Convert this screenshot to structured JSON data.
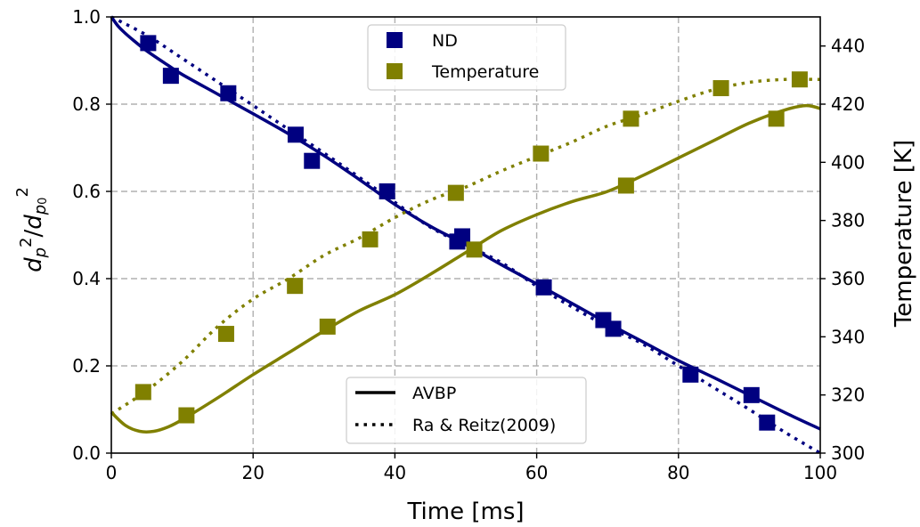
{
  "chart_data": {
    "type": "line",
    "xlabel": "Time [ms]",
    "ylabel_left": "d_p^2/d_{p_0}^2",
    "ylabel_right": "Temperature [K]",
    "xlim": [
      0,
      100
    ],
    "ylim_left": [
      0.0,
      1.0
    ],
    "ylim_right": [
      300,
      450
    ],
    "xticks": [
      "0",
      "20",
      "40",
      "60",
      "80",
      "100"
    ],
    "yticks_left": [
      "0.0",
      "0.2",
      "0.4",
      "0.6",
      "0.8",
      "1.0"
    ],
    "yticks_right": [
      "300",
      "320",
      "340",
      "360",
      "380",
      "400",
      "420",
      "440"
    ],
    "grid": true,
    "colors": {
      "nd": "#000080",
      "temperature": "#808000",
      "grid": "#b0b0b0"
    },
    "legend_series": {
      "placement": "upper-center",
      "entries": [
        {
          "label": "ND",
          "color": "#000080",
          "marker": "square"
        },
        {
          "label": "Temperature",
          "color": "#808000",
          "marker": "square"
        }
      ]
    },
    "legend_styles": {
      "placement": "lower-center",
      "entries": [
        {
          "label": "AVBP",
          "linestyle": "solid"
        },
        {
          "label": "Ra & Reitz(2009)",
          "linestyle": "dotted"
        }
      ]
    },
    "series": [
      {
        "name": "AVBP",
        "group": "ND",
        "axis": "left",
        "color": "#000080",
        "linestyle": "solid",
        "x": [
          0,
          1,
          2,
          3,
          5,
          8,
          10,
          15,
          20,
          25,
          30,
          35,
          40,
          45,
          50,
          55,
          60,
          65,
          70,
          75,
          80,
          85,
          90,
          95,
          100
        ],
        "y": [
          1.0,
          0.978,
          0.962,
          0.948,
          0.922,
          0.889,
          0.868,
          0.823,
          0.778,
          0.732,
          0.682,
          0.627,
          0.57,
          0.52,
          0.478,
          0.432,
          0.388,
          0.343,
          0.298,
          0.255,
          0.212,
          0.173,
          0.133,
          0.093,
          0.055
        ]
      },
      {
        "name": "Ra & Reitz(2009)",
        "group": "ND",
        "axis": "left",
        "color": "#000080",
        "linestyle": "dotted",
        "x": [
          0,
          5,
          10,
          15,
          20,
          25,
          30,
          35,
          40,
          45,
          50,
          55,
          60,
          65,
          70,
          75,
          80,
          85,
          90,
          95,
          100
        ],
        "y": [
          1.0,
          0.958,
          0.905,
          0.851,
          0.797,
          0.742,
          0.688,
          0.632,
          0.575,
          0.518,
          0.477,
          0.437,
          0.383,
          0.335,
          0.29,
          0.25,
          0.2,
          0.15,
          0.1,
          0.048,
          0.0
        ]
      },
      {
        "name": "AVBP",
        "group": "Temperature",
        "axis": "right",
        "color": "#808000",
        "linestyle": "solid",
        "x": [
          0,
          2,
          4,
          6,
          8,
          10,
          15,
          20,
          25,
          30,
          35,
          40,
          45,
          50,
          55,
          60,
          65,
          70,
          75,
          80,
          85,
          90,
          95,
          98,
          100
        ],
        "y": [
          314,
          309.5,
          307.5,
          307.5,
          309,
          311.5,
          319,
          327,
          334.5,
          342,
          349,
          354.5,
          361.5,
          369,
          376.5,
          382,
          386.5,
          390,
          395.5,
          401.5,
          407.5,
          413.5,
          418,
          419.5,
          418.5
        ]
      },
      {
        "name": "Ra & Reitz(2009)",
        "group": "Temperature",
        "axis": "right",
        "color": "#808000",
        "linestyle": "dotted",
        "x": [
          0,
          5,
          10,
          15,
          20,
          25,
          30,
          35,
          40,
          45,
          50,
          55,
          60,
          65,
          70,
          75,
          80,
          85,
          90,
          95,
          100
        ],
        "y": [
          313.5,
          321.5,
          331.5,
          343.5,
          353,
          360,
          368,
          374,
          381,
          387,
          391.5,
          397,
          402,
          407,
          412.5,
          416.5,
          421,
          425,
          427.5,
          428.5,
          428.5
        ]
      },
      {
        "name": "ND",
        "group": "ND",
        "axis": "left",
        "color": "#000080",
        "marker": "square",
        "x": [
          5.2,
          8.4,
          16.5,
          26.0,
          28.3,
          38.9,
          48.8,
          49.5,
          61.0,
          69.4,
          70.8,
          81.7,
          90.3,
          92.5
        ],
        "y": [
          0.94,
          0.865,
          0.825,
          0.73,
          0.67,
          0.6,
          0.485,
          0.497,
          0.38,
          0.305,
          0.285,
          0.18,
          0.133,
          0.07
        ]
      },
      {
        "name": "Temperature",
        "group": "Temperature",
        "axis": "right",
        "color": "#808000",
        "marker": "square",
        "x": [
          4.5,
          10.6,
          16.2,
          25.9,
          30.5,
          36.5,
          48.6,
          51.2,
          60.6,
          72.6,
          73.3,
          86.0,
          93.8,
          97.1
        ],
        "y": [
          321,
          313,
          341,
          357.5,
          343.5,
          373.5,
          389.5,
          370,
          403,
          392,
          415,
          425.5,
          415,
          428.5
        ]
      }
    ]
  }
}
